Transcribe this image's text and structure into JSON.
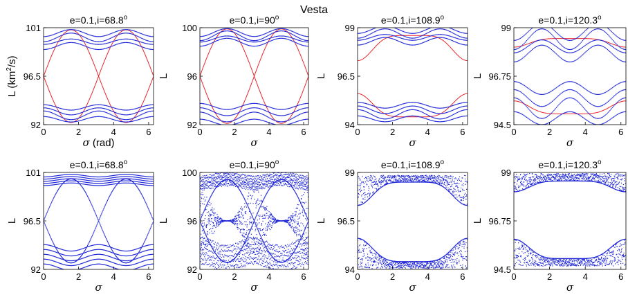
{
  "title": "Vesta",
  "colors": {
    "curve": "#e8262b",
    "points": "#1f26d6",
    "axis": "#000000"
  },
  "chart_data": [
    {
      "type": "scatter",
      "title": "e=0.1,i=68.8",
      "title_sup": "o",
      "xlabel": "σ",
      "xlabel_unit": " (rad)",
      "ylabel": "L (km",
      "ylabel_sup": "2",
      "ylabel_tail": "/s)",
      "xlim": [
        0,
        6.28
      ],
      "ylim": [
        92,
        101
      ],
      "xticks": [
        "0",
        "2",
        "4",
        "6"
      ],
      "yticks": [
        "92",
        "96.5",
        "101"
      ],
      "series": [
        {
          "color": "curve",
          "kind": "line",
          "family": "inner",
          "params": {
            "center": 96.5,
            "amplitude": 4.3,
            "phase": 1.571
          }
        },
        {
          "color": "points",
          "kind": "dots",
          "family": "bands",
          "params": {
            "low": [
              92.5,
              93.6
            ],
            "high": [
              99.3,
              100.5
            ],
            "ripple": 0.25
          }
        }
      ]
    },
    {
      "type": "scatter",
      "title": "e=0.1,i=90",
      "title_sup": "o",
      "xlabel": "σ",
      "ylabel": "L",
      "xlim": [
        0,
        6.28
      ],
      "ylim": [
        92,
        100
      ],
      "xticks": [
        "0",
        "2",
        "4",
        "6"
      ],
      "yticks": [
        "92",
        "96",
        "100"
      ],
      "series": [
        {
          "color": "curve",
          "kind": "line",
          "family": "inner",
          "params": {
            "center": 96.0,
            "amplitude": 3.9,
            "phase": 1.571
          }
        },
        {
          "color": "points",
          "kind": "dots",
          "family": "bands",
          "params": {
            "low": [
              92.2,
              93.5
            ],
            "high": [
              98.8,
              99.6
            ],
            "ripple": 0.25
          }
        }
      ]
    },
    {
      "type": "scatter",
      "title": "e=0.1,i=108.9",
      "title_sup": "o",
      "xlabel": "σ",
      "ylabel": "L",
      "xlim": [
        0,
        6.28
      ],
      "ylim": [
        94,
        99
      ],
      "xticks": [
        "0",
        "2",
        "4",
        "6"
      ],
      "yticks": [
        "94",
        "96.5",
        "99"
      ],
      "series": [
        {
          "color": "curve",
          "kind": "line",
          "family": "dip",
          "params": {
            "top": 98.6,
            "bottom": 94.4,
            "dip_top": 97.3,
            "dip_bottom": 95.6
          }
        },
        {
          "color": "points",
          "kind": "dots",
          "family": "bands",
          "params": {
            "low": [
              94.3,
              95.0
            ],
            "high": [
              98.3,
              98.9
            ],
            "ripple": 0.15
          }
        }
      ]
    },
    {
      "type": "scatter",
      "title": "e=0.1,i=120.3",
      "title_sup": "o",
      "xlabel": "σ",
      "ylabel": "L",
      "xlim": [
        0,
        6.28
      ],
      "ylim": [
        94.5,
        99
      ],
      "xticks": [
        "0",
        "2",
        "4",
        "6"
      ],
      "yticks": [
        "94.5",
        "96.75",
        "99"
      ],
      "series": [
        {
          "color": "curve",
          "kind": "line",
          "family": "dip",
          "params": {
            "top": 98.5,
            "bottom": 95.0,
            "dip_top": 98.1,
            "dip_bottom": 95.6
          }
        },
        {
          "color": "points",
          "kind": "dots",
          "family": "bands",
          "params": {
            "low": [
              94.8,
              96.2
            ],
            "high": [
              97.8,
              98.8
            ],
            "ripple": 0.3
          }
        }
      ]
    },
    {
      "type": "scatter",
      "title": "e=0.1,i=68.8",
      "title_sup": "o",
      "xlabel": "σ",
      "ylabel": "L",
      "xlim": [
        0,
        6.28
      ],
      "ylim": [
        92,
        101
      ],
      "xticks": [
        "0",
        "2",
        "4",
        "6"
      ],
      "yticks": [
        "92",
        "96.5",
        "101"
      ],
      "series": [
        {
          "color": "points",
          "kind": "dots",
          "family": "separatrix",
          "params": {
            "center": 96.5,
            "amplitude": 3.9,
            "low": [
              92.2,
              94.0
            ],
            "high": [
              99.9,
              100.7
            ]
          }
        }
      ]
    },
    {
      "type": "scatter",
      "title": "e=0.1,i=90",
      "title_sup": "o",
      "xlabel": "σ",
      "ylabel": "L",
      "xlim": [
        0,
        6.28
      ],
      "ylim": [
        92,
        100
      ],
      "xticks": [
        "0",
        "2",
        "4",
        "6"
      ],
      "yticks": [
        "92",
        "96",
        "100"
      ],
      "series": [
        {
          "color": "points",
          "kind": "dots",
          "family": "eyes",
          "params": {
            "center": 96.0,
            "amplitude": 3.6,
            "low": [
              92.2,
              94.2
            ],
            "high": [
              98.8,
              99.8
            ]
          }
        }
      ]
    },
    {
      "type": "scatter",
      "title": "e=0.1,i=108.9",
      "title_sup": "o",
      "xlabel": "σ",
      "ylabel": "L",
      "xlim": [
        0,
        6.28
      ],
      "ylim": [
        94,
        99
      ],
      "xticks": [
        "0",
        "2",
        "4",
        "6"
      ],
      "yticks": [
        "94",
        "96.5",
        "99"
      ],
      "series": [
        {
          "color": "points",
          "kind": "dots",
          "family": "chaos_dip",
          "params": {
            "top": 98.5,
            "bottom": 94.4,
            "dip_top": 97.3,
            "dip_bottom": 95.6
          }
        }
      ]
    },
    {
      "type": "scatter",
      "title": "e=0.1,i=120.3",
      "title_sup": "o",
      "xlabel": "σ",
      "ylabel": "L",
      "xlim": [
        0,
        6.28
      ],
      "ylim": [
        94.5,
        99
      ],
      "xticks": [
        "0",
        "2",
        "4",
        "6"
      ],
      "yticks": [
        "94.5",
        "96.75",
        "99"
      ],
      "series": [
        {
          "color": "points",
          "kind": "dots",
          "family": "chaos_dip",
          "params": {
            "top": 98.6,
            "bottom": 95.0,
            "dip_top": 98.1,
            "dip_bottom": 95.9
          }
        }
      ]
    }
  ]
}
